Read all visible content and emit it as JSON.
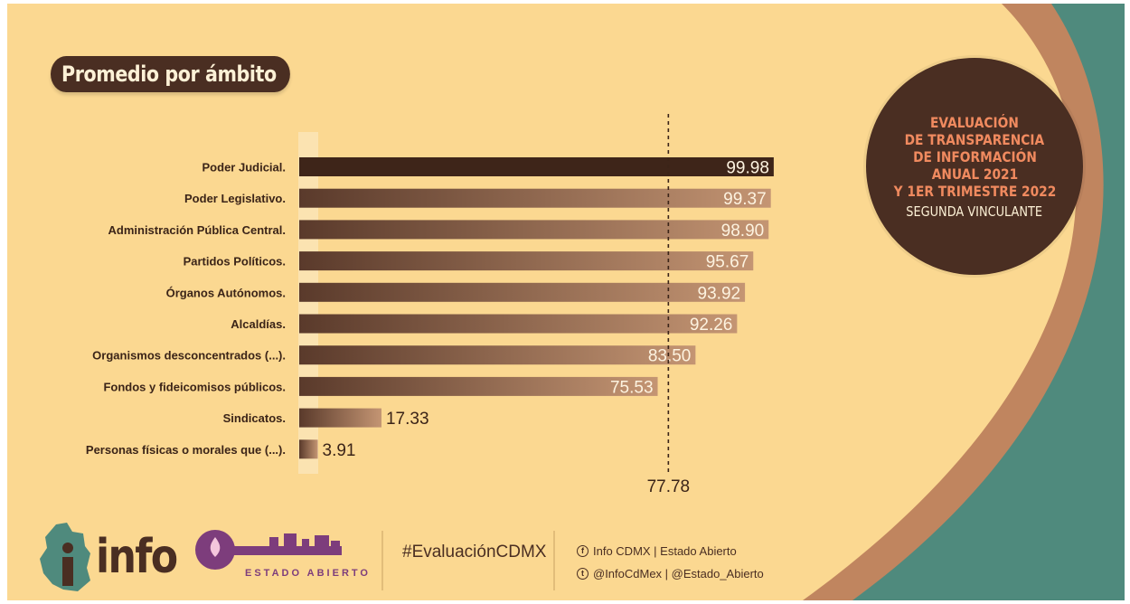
{
  "header": {
    "title": "Promedio por ámbito"
  },
  "badge": {
    "lines": [
      "EVALUACIÓN",
      "DE TRANSPARENCIA",
      "DE INFORMACIÓN",
      "ANUAL 2021",
      "Y 1ER TRIMESTRE 2022"
    ],
    "subtitle": "SEGUNDA VINCULANTE"
  },
  "chart_data": {
    "type": "bar",
    "orientation": "horizontal",
    "title": "Promedio por ámbito",
    "categories": [
      "Poder Judicial.",
      "Poder Legislativo.",
      "Administración Pública Central.",
      "Partidos Políticos.",
      "Órganos Autónomos.",
      "Alcaldías.",
      "Organismos desconcentrados (...).",
      "Fondos y fideicomisos públicos.",
      "Sindicatos.",
      "Personas físicas o morales que (...)."
    ],
    "values": [
      99.98,
      99.37,
      98.9,
      95.67,
      93.92,
      92.26,
      83.5,
      75.53,
      17.33,
      3.91
    ],
    "value_labels": [
      "99.98",
      "99.37",
      "98.90",
      "95.67",
      "93.92",
      "92.26",
      "83.50",
      "75.53",
      "17.33",
      "3.91"
    ],
    "reference_line": {
      "value": 77.78,
      "label": "77.78",
      "style": "dashed"
    },
    "xlim": [
      0,
      100
    ],
    "grid": false,
    "colors": {
      "highlight": "#3e2519",
      "gradient_start": "#5a3a2b",
      "gradient_end": "#c49573",
      "label_light": "#fdf3e0",
      "label_dark": "#3b2418"
    }
  },
  "footer": {
    "logo_text": "info",
    "logo_estado": "ESTADO ABIERTO",
    "hashtag": "#EvaluaciónCDMX",
    "facebook": "Info CDMX | Estado Abierto",
    "twitter": "@InfoCdMex | @Estado_Abierto"
  },
  "colors": {
    "background": "#fbd891",
    "brown": "#4a2e22",
    "teal": "#4f8a7d",
    "orange": "#f08a5f",
    "purple": "#7d3d7c"
  }
}
